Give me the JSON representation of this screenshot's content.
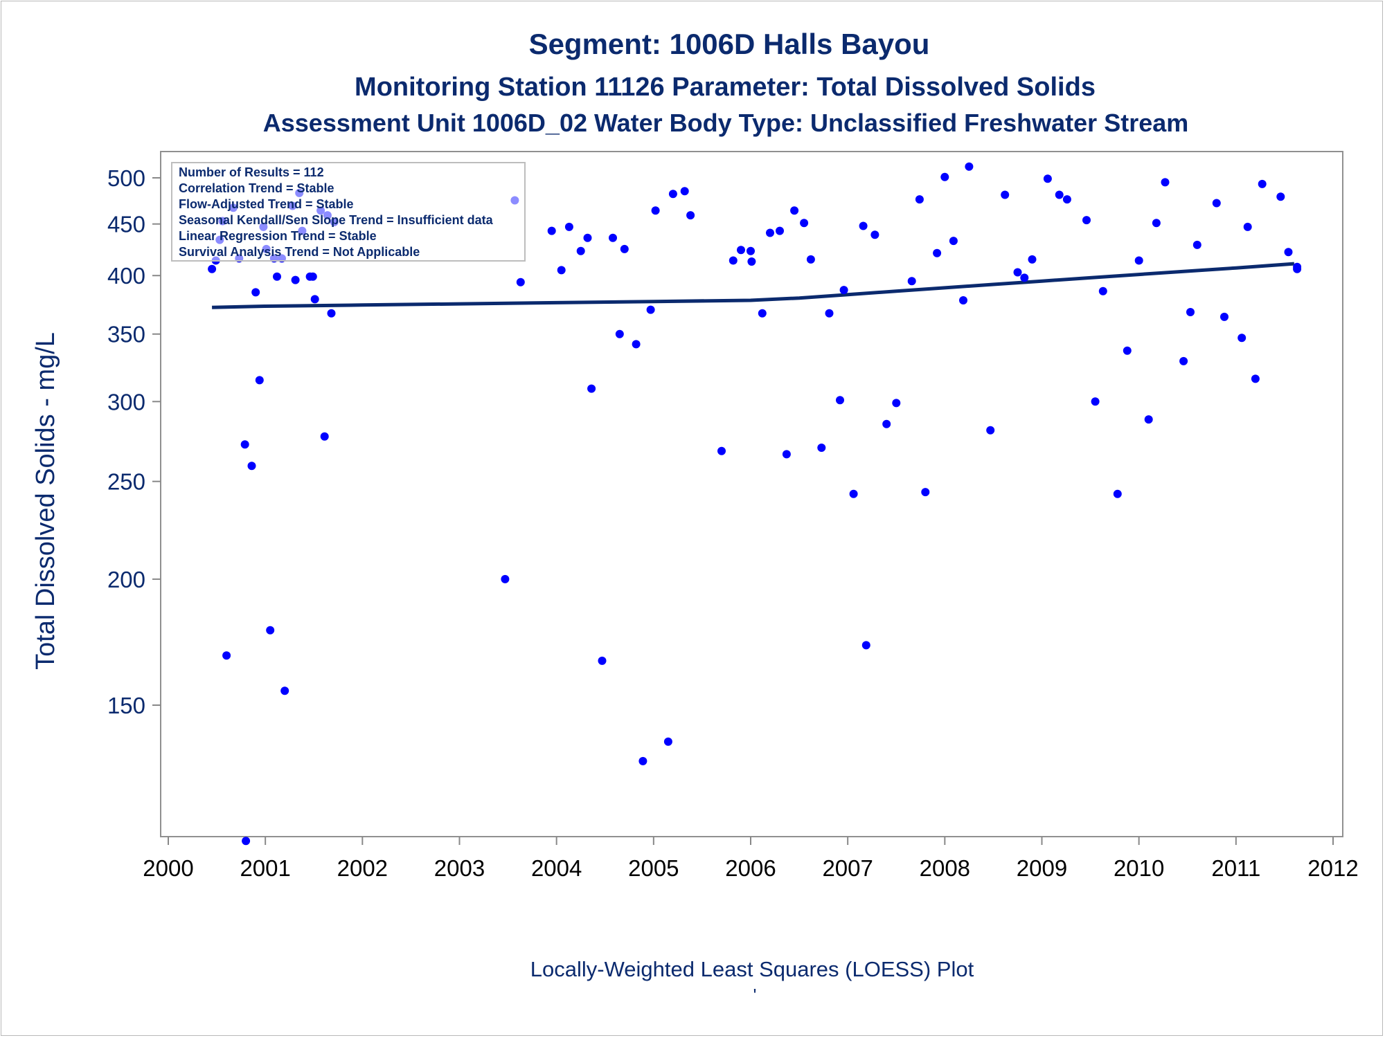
{
  "chart_data": {
    "type": "scatter",
    "title": "Segment: 1006D  Halls Bayou",
    "subtitle": "Monitoring Station 11126 Parameter: Total Dissolved Solids",
    "subtitle2": "Assessment Unit 1006D_02   Water Body Type: Unclassified Freshwater Stream",
    "ylabel": "Total Dissolved Solids - mg/L",
    "xlabel": "",
    "footnote": "Locally-Weighted Least Squares (LOESS) Plot",
    "footnote_mark": "'",
    "y_scale": "log",
    "xlim": [
      2000,
      2012
    ],
    "ylim": [
      108,
      520
    ],
    "x_ticks": [
      "2000",
      "2001",
      "2002",
      "2003",
      "2004",
      "2005",
      "2006",
      "2007",
      "2008",
      "2009",
      "2010",
      "2011",
      "2012"
    ],
    "y_ticks": [
      "150",
      "200",
      "250",
      "300",
      "350",
      "400",
      "450",
      "500"
    ],
    "grid": false,
    "stats_box": {
      "position": "top-left",
      "lines": [
        "Number of Results = 112",
        "Correlation Trend = Stable",
        "Flow-Adjusted Trend = Stable",
        "Seasonal Kendall/Sen Slope Trend = Insufficient data",
        "Linear Regression Trend = Stable",
        "Survival Analysis Trend = Not Applicable"
      ]
    },
    "colors": {
      "points": "#0000ff",
      "loess_line": "#0b2a6e",
      "text": "#0b2a6e",
      "axis": "#888888"
    },
    "series": [
      {
        "type": "scatter",
        "points": [
          [
            2000.45,
            406
          ],
          [
            2000.49,
            414
          ],
          [
            2000.53,
            434
          ],
          [
            2000.56,
            453
          ],
          [
            2000.6,
            168
          ],
          [
            2000.67,
            467
          ],
          [
            2000.73,
            416
          ],
          [
            2000.79,
            272
          ],
          [
            2000.8,
            110
          ],
          [
            2000.86,
            259
          ],
          [
            2000.9,
            385
          ],
          [
            2000.94,
            315
          ],
          [
            2000.98,
            447
          ],
          [
            2001.01,
            425
          ],
          [
            2001.05,
            178
          ],
          [
            2001.09,
            416
          ],
          [
            2001.12,
            399
          ],
          [
            2001.17,
            416
          ],
          [
            2001.2,
            155
          ],
          [
            2001.28,
            469
          ],
          [
            2001.31,
            396
          ],
          [
            2001.35,
            483
          ],
          [
            2001.38,
            443
          ],
          [
            2001.46,
            399
          ],
          [
            2001.49,
            399
          ],
          [
            2001.51,
            379
          ],
          [
            2001.57,
            464
          ],
          [
            2001.61,
            277
          ],
          [
            2001.64,
            459
          ],
          [
            2001.68,
            367
          ],
          [
            2001.71,
            452
          ],
          [
            2003.47,
            200
          ],
          [
            2003.57,
            475
          ],
          [
            2003.63,
            394
          ],
          [
            2003.95,
            443
          ],
          [
            2004.05,
            405
          ],
          [
            2004.13,
            447
          ],
          [
            2004.25,
            423
          ],
          [
            2004.32,
            436
          ],
          [
            2004.36,
            309
          ],
          [
            2004.47,
            166
          ],
          [
            2004.58,
            436
          ],
          [
            2004.65,
            350
          ],
          [
            2004.7,
            425
          ],
          [
            2004.82,
            342
          ],
          [
            2004.89,
            132
          ],
          [
            2004.97,
            370
          ],
          [
            2005.02,
            464
          ],
          [
            2005.15,
            138
          ],
          [
            2005.2,
            482
          ],
          [
            2005.32,
            485
          ],
          [
            2005.38,
            459
          ],
          [
            2005.7,
            268
          ],
          [
            2005.82,
            414
          ],
          [
            2005.9,
            424
          ],
          [
            2006.0,
            423
          ],
          [
            2006.01,
            413
          ],
          [
            2006.12,
            367
          ],
          [
            2006.2,
            441
          ],
          [
            2006.3,
            443
          ],
          [
            2006.37,
            266
          ],
          [
            2006.45,
            464
          ],
          [
            2006.55,
            451
          ],
          [
            2006.62,
            415
          ],
          [
            2006.73,
            270
          ],
          [
            2006.81,
            367
          ],
          [
            2006.92,
            301
          ],
          [
            2006.96,
            387
          ],
          [
            2007.06,
            243
          ],
          [
            2007.16,
            448
          ],
          [
            2007.19,
            172
          ],
          [
            2007.28,
            439
          ],
          [
            2007.4,
            285
          ],
          [
            2007.5,
            299
          ],
          [
            2007.66,
            395
          ],
          [
            2007.74,
            476
          ],
          [
            2007.8,
            244
          ],
          [
            2007.92,
            421
          ],
          [
            2008.0,
            501
          ],
          [
            2008.09,
            433
          ],
          [
            2008.19,
            378
          ],
          [
            2008.25,
            513
          ],
          [
            2008.47,
            281
          ],
          [
            2008.62,
            481
          ],
          [
            2008.75,
            403
          ],
          [
            2008.82,
            398
          ],
          [
            2008.9,
            415
          ],
          [
            2009.06,
            499
          ],
          [
            2009.18,
            481
          ],
          [
            2009.26,
            476
          ],
          [
            2009.46,
            454
          ],
          [
            2009.55,
            300
          ],
          [
            2009.63,
            386
          ],
          [
            2009.78,
            243
          ],
          [
            2009.88,
            337
          ],
          [
            2010.0,
            414
          ],
          [
            2010.1,
            288
          ],
          [
            2010.18,
            451
          ],
          [
            2010.27,
            495
          ],
          [
            2010.46,
            329
          ],
          [
            2010.53,
            368
          ],
          [
            2010.6,
            429
          ],
          [
            2010.8,
            472
          ],
          [
            2010.88,
            364
          ],
          [
            2011.06,
            347
          ],
          [
            2011.12,
            447
          ],
          [
            2011.2,
            316
          ],
          [
            2011.27,
            493
          ],
          [
            2011.46,
            479
          ],
          [
            2011.54,
            422
          ],
          [
            2011.63,
            408
          ],
          [
            2011.63,
            406
          ]
        ]
      },
      {
        "name": "LOESS",
        "type": "line",
        "points": [
          [
            2000.45,
            372
          ],
          [
            2001.0,
            373
          ],
          [
            2002.0,
            374
          ],
          [
            2003.0,
            375
          ],
          [
            2004.0,
            376
          ],
          [
            2005.0,
            377
          ],
          [
            2006.0,
            378
          ],
          [
            2006.5,
            380
          ],
          [
            2007.0,
            383
          ],
          [
            2007.5,
            386
          ],
          [
            2008.0,
            389
          ],
          [
            2008.5,
            392
          ],
          [
            2009.0,
            395
          ],
          [
            2009.5,
            398
          ],
          [
            2010.0,
            401
          ],
          [
            2010.5,
            404
          ],
          [
            2011.0,
            407
          ],
          [
            2011.6,
            411
          ]
        ]
      }
    ]
  }
}
